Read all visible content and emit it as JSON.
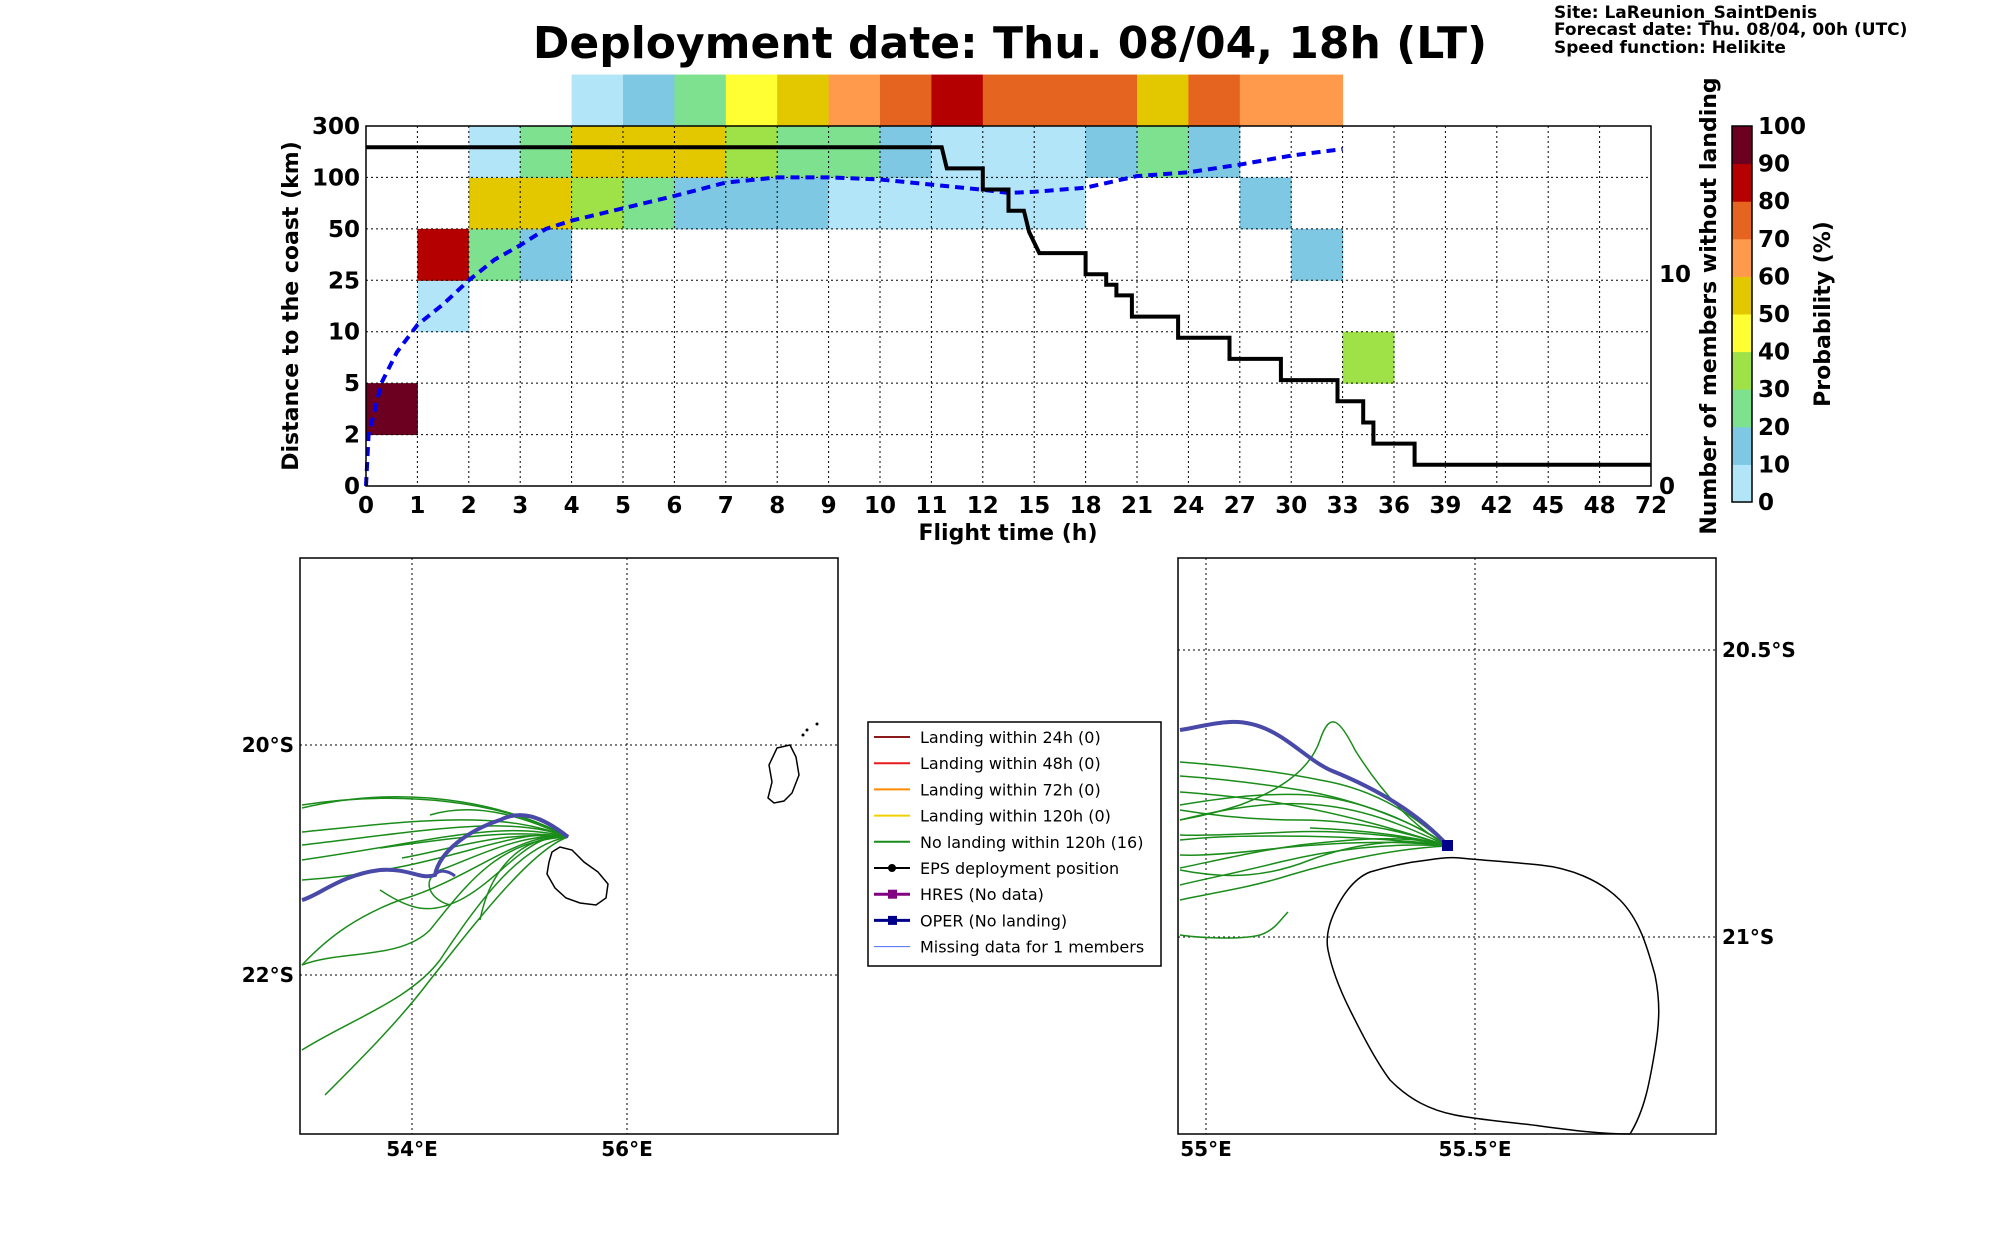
{
  "header": {
    "title": "Deployment date: Thu. 08/04, 18h (LT)",
    "site": "Site: LaReunion_SaintDenis",
    "forecast_date": "Forecast date: Thu. 08/04, 00h (UTC)",
    "speed_function": "Speed function: Helikite"
  },
  "colors": {
    "bins": [
      "#b3e5f9",
      "#7ec8e3",
      "#7ee18f",
      "#9ee247",
      "#ffff33",
      "#e3c800",
      "#ff9a4d",
      "#e56420",
      "#b50000",
      "#6b0020"
    ],
    "median_line": "#0000ee",
    "members_line": "#000000",
    "ens_track": "#1a8c1a",
    "oper_track": "#4949a8"
  },
  "chart_data": {
    "type": "heatmap",
    "xlabel": "Flight time (h)",
    "ylabel": "Distance to the coast (km)",
    "y2label": "Number of members without landing",
    "colorbar_label": "Probability (%)",
    "x_ticks": [
      "0",
      "1",
      "2",
      "3",
      "4",
      "5",
      "6",
      "7",
      "8",
      "9",
      "10",
      "11",
      "12",
      "15",
      "18",
      "21",
      "24",
      "27",
      "30",
      "33",
      "36",
      "39",
      "42",
      "45",
      "48",
      "72"
    ],
    "y_ticks": [
      "0",
      "2",
      "5",
      "10",
      "25",
      "50",
      "100",
      "300"
    ],
    "y2_ticks": [
      "0",
      "10"
    ],
    "colorbar_ticks": [
      "0",
      "10",
      "20",
      "30",
      "40",
      "50",
      "60",
      "70",
      "80",
      "90",
      "100"
    ],
    "grid": true,
    "cells": [
      {
        "x": 0,
        "y": 1,
        "p": 95
      },
      {
        "x": 1,
        "y": 3,
        "p": 5
      },
      {
        "x": 1,
        "y": 4,
        "p": 85
      },
      {
        "x": 2,
        "y": 4,
        "p": 25
      },
      {
        "x": 2,
        "y": 5,
        "p": 55
      },
      {
        "x": 2,
        "y": 6,
        "p": 5
      },
      {
        "x": 3,
        "y": 4,
        "p": 15
      },
      {
        "x": 3,
        "y": 5,
        "p": 55
      },
      {
        "x": 3,
        "y": 6,
        "p": 25
      },
      {
        "x": 4,
        "y": 5,
        "p": 35
      },
      {
        "x": 4,
        "y": 6,
        "p": 55
      },
      {
        "x": 4,
        "y": 7,
        "p": 5
      },
      {
        "x": 5,
        "y": 5,
        "p": 25
      },
      {
        "x": 5,
        "y": 6,
        "p": 55
      },
      {
        "x": 5,
        "y": 7,
        "p": 15
      },
      {
        "x": 6,
        "y": 5,
        "p": 15
      },
      {
        "x": 6,
        "y": 6,
        "p": 55
      },
      {
        "x": 6,
        "y": 7,
        "p": 25
      },
      {
        "x": 7,
        "y": 5,
        "p": 15
      },
      {
        "x": 7,
        "y": 6,
        "p": 35
      },
      {
        "x": 7,
        "y": 7,
        "p": 45
      },
      {
        "x": 8,
        "y": 5,
        "p": 15
      },
      {
        "x": 8,
        "y": 6,
        "p": 25
      },
      {
        "x": 8,
        "y": 7,
        "p": 55
      },
      {
        "x": 9,
        "y": 5,
        "p": 5
      },
      {
        "x": 9,
        "y": 6,
        "p": 25
      },
      {
        "x": 9,
        "y": 7,
        "p": 65
      },
      {
        "x": 10,
        "y": 5,
        "p": 5
      },
      {
        "x": 10,
        "y": 6,
        "p": 15
      },
      {
        "x": 10,
        "y": 7,
        "p": 75
      },
      {
        "x": 11,
        "y": 5,
        "p": 5
      },
      {
        "x": 11,
        "y": 6,
        "p": 5
      },
      {
        "x": 11,
        "y": 7,
        "p": 85
      },
      {
        "x": 12,
        "y": 5,
        "p": 5
      },
      {
        "x": 12,
        "y": 6,
        "p": 5
      },
      {
        "x": 12,
        "y": 7,
        "p": 75
      },
      {
        "x": 13,
        "y": 5,
        "p": 5
      },
      {
        "x": 13,
        "y": 6,
        "p": 5
      },
      {
        "x": 13,
        "y": 7,
        "p": 75
      },
      {
        "x": 14,
        "y": 6,
        "p": 15
      },
      {
        "x": 14,
        "y": 7,
        "p": 75
      },
      {
        "x": 15,
        "y": 6,
        "p": 25
      },
      {
        "x": 15,
        "y": 7,
        "p": 55
      },
      {
        "x": 16,
        "y": 6,
        "p": 15
      },
      {
        "x": 16,
        "y": 7,
        "p": 75
      },
      {
        "x": 17,
        "y": 5,
        "p": 15
      },
      {
        "x": 17,
        "y": 7,
        "p": 65
      },
      {
        "x": 18,
        "y": 4,
        "p": 15
      },
      {
        "x": 18,
        "y": 7,
        "p": 65
      },
      {
        "x": 19,
        "y": 2,
        "p": 35
      }
    ],
    "median_distance_km": [
      [
        0,
        0
      ],
      [
        0.05,
        2
      ],
      [
        0.3,
        5
      ],
      [
        0.6,
        8
      ],
      [
        1,
        12
      ],
      [
        1.5,
        18
      ],
      [
        2,
        25
      ],
      [
        2.5,
        35
      ],
      [
        3,
        42
      ],
      [
        3.5,
        50
      ],
      [
        4,
        58
      ],
      [
        5,
        70
      ],
      [
        6,
        82
      ],
      [
        7,
        95
      ],
      [
        8,
        100
      ],
      [
        9,
        100
      ],
      [
        10,
        98
      ],
      [
        11,
        93
      ],
      [
        12,
        88
      ],
      [
        12.5,
        85
      ],
      [
        13,
        86
      ],
      [
        14,
        90
      ],
      [
        15,
        105
      ],
      [
        16,
        120
      ],
      [
        17,
        150
      ],
      [
        18,
        185
      ],
      [
        19,
        210
      ]
    ],
    "members_without_landing": [
      [
        0,
        16
      ],
      [
        11.2,
        16
      ],
      [
        11.3,
        15
      ],
      [
        12,
        15
      ],
      [
        12,
        14
      ],
      [
        12.5,
        14
      ],
      [
        12.5,
        13
      ],
      [
        12.8,
        13
      ],
      [
        12.9,
        12
      ],
      [
        13.1,
        11
      ],
      [
        14,
        11
      ],
      [
        14,
        10
      ],
      [
        14.4,
        10
      ],
      [
        14.4,
        9.5
      ],
      [
        14.6,
        9.5
      ],
      [
        14.6,
        9
      ],
      [
        14.9,
        9
      ],
      [
        14.9,
        8
      ],
      [
        15.8,
        8
      ],
      [
        15.8,
        7
      ],
      [
        16.8,
        7
      ],
      [
        16.8,
        6
      ],
      [
        17.8,
        6
      ],
      [
        17.8,
        5
      ],
      [
        18.9,
        5
      ],
      [
        18.9,
        4
      ],
      [
        19.4,
        4
      ],
      [
        19.4,
        3
      ],
      [
        19.6,
        3
      ],
      [
        19.6,
        2
      ],
      [
        20.4,
        2
      ],
      [
        20.4,
        1
      ],
      [
        25,
        1
      ]
    ]
  },
  "maps": {
    "left": {
      "lon_ticks": [
        "54°E",
        "56°E"
      ],
      "lat_ticks": [
        "20°S",
        "22°S"
      ]
    },
    "right": {
      "lon_ticks": [
        "55°E",
        "55.5°E"
      ],
      "lat_ticks": [
        "20.5°S",
        "21°S"
      ]
    }
  },
  "legend": {
    "items": [
      {
        "label": "Landing within 24h (0)",
        "color": "#8b1a1a",
        "marker": "none",
        "width": 2
      },
      {
        "label": "Landing within 48h (0)",
        "color": "#e81c1c",
        "marker": "none",
        "width": 2
      },
      {
        "label": "Landing within 72h (0)",
        "color": "#ff8c00",
        "marker": "none",
        "width": 2
      },
      {
        "label": "Landing within 120h (0)",
        "color": "#f0d000",
        "marker": "none",
        "width": 2
      },
      {
        "label": "No landing within 120h (16)",
        "color": "#1a8c1a",
        "marker": "none",
        "width": 2
      },
      {
        "label": "EPS deployment position",
        "color": "#000000",
        "marker": "circle",
        "width": 2
      },
      {
        "label": "HRES (No data)",
        "color": "#800080",
        "marker": "square",
        "width": 3
      },
      {
        "label": "OPER (No landing)",
        "color": "#00008b",
        "marker": "square",
        "width": 3
      },
      {
        "label": "Missing data for 1 members",
        "color": "#4a6cf7",
        "marker": "none",
        "width": 1
      }
    ]
  }
}
